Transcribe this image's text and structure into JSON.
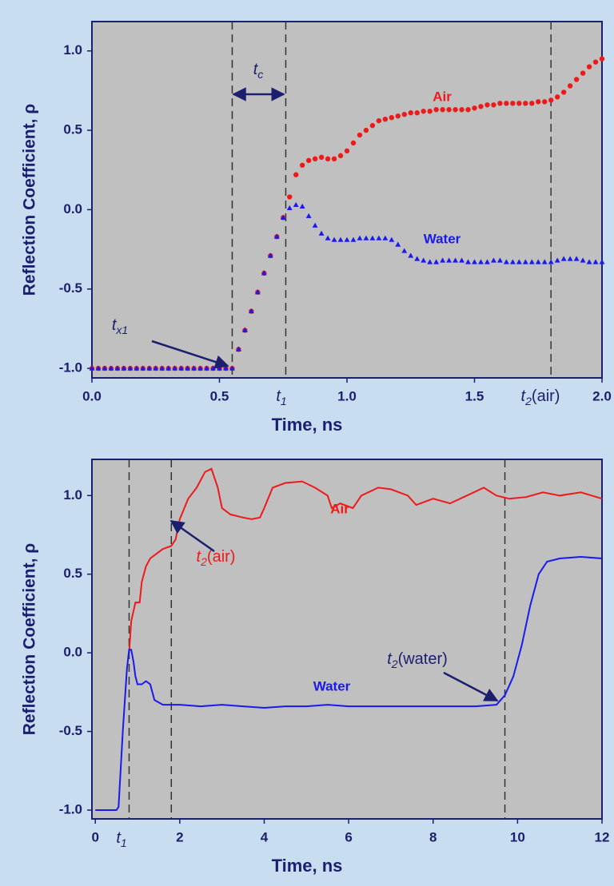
{
  "chart_data": [
    {
      "type": "scatter",
      "xlabel": "Time, ns",
      "ylabel": "Reflection Coefficient, ρ",
      "xlim": [
        0,
        2
      ],
      "ylim": [
        -1.06,
        1.185
      ],
      "xticks": [
        {
          "value": 0,
          "label": "0.0"
        },
        {
          "value": 0.5,
          "label": "0.5"
        },
        {
          "value": 1,
          "label": "1.0"
        },
        {
          "value": 1.5,
          "label": "1.5"
        },
        {
          "value": 2,
          "label": "2.0"
        }
      ],
      "yticks": [
        {
          "value": 1,
          "label": "1.0"
        },
        {
          "value": 0.5,
          "label": "0.5"
        },
        {
          "value": 0,
          "label": "0.0"
        },
        {
          "value": -0.5,
          "label": "-0.5"
        },
        {
          "value": -1,
          "label": "-1.0"
        }
      ],
      "x": [
        0,
        0.025,
        0.05,
        0.075,
        0.1,
        0.125,
        0.15,
        0.175,
        0.2,
        0.225,
        0.25,
        0.275,
        0.3,
        0.325,
        0.35,
        0.375,
        0.4,
        0.425,
        0.45,
        0.475,
        0.5,
        0.525,
        0.55,
        0.575,
        0.6,
        0.625,
        0.65,
        0.675,
        0.7,
        0.725,
        0.75,
        0.775,
        0.8,
        0.825,
        0.85,
        0.875,
        0.9,
        0.925,
        0.95,
        0.975,
        1,
        1.025,
        1.05,
        1.075,
        1.1,
        1.125,
        1.15,
        1.175,
        1.2,
        1.225,
        1.25,
        1.275,
        1.3,
        1.325,
        1.35,
        1.375,
        1.4,
        1.425,
        1.45,
        1.475,
        1.5,
        1.525,
        1.55,
        1.575,
        1.6,
        1.625,
        1.65,
        1.675,
        1.7,
        1.725,
        1.75,
        1.775,
        1.8,
        1.825,
        1.85,
        1.875,
        1.9,
        1.925,
        1.95,
        1.975,
        2
      ],
      "series": [
        {
          "name": "Air",
          "color": "#ee1a1a",
          "marker": "circle",
          "values": [
            -1,
            -1,
            -1,
            -1,
            -1,
            -1,
            -1,
            -1,
            -1,
            -1,
            -1,
            -1,
            -1,
            -1,
            -1,
            -1,
            -1,
            -1,
            -1,
            -1,
            -1,
            -1,
            -1,
            -0.88,
            -0.76,
            -0.64,
            -0.52,
            -0.4,
            -0.29,
            -0.17,
            -0.05,
            0.08,
            0.22,
            0.28,
            0.31,
            0.32,
            0.33,
            0.32,
            0.32,
            0.34,
            0.37,
            0.42,
            0.47,
            0.5,
            0.53,
            0.56,
            0.57,
            0.58,
            0.59,
            0.6,
            0.61,
            0.61,
            0.62,
            0.62,
            0.63,
            0.63,
            0.63,
            0.63,
            0.63,
            0.63,
            0.64,
            0.65,
            0.66,
            0.66,
            0.67,
            0.67,
            0.67,
            0.67,
            0.67,
            0.67,
            0.68,
            0.68,
            0.69,
            0.71,
            0.74,
            0.78,
            0.82,
            0.86,
            0.9,
            0.93,
            0.95
          ]
        },
        {
          "name": "Water",
          "color": "#1a1aee",
          "marker": "triangle",
          "values": [
            -1,
            -1,
            -1,
            -1,
            -1,
            -1,
            -1,
            -1,
            -1,
            -1,
            -1,
            -1,
            -1,
            -1,
            -1,
            -1,
            -1,
            -1,
            -1,
            -1,
            -1,
            -1,
            -1,
            -0.88,
            -0.76,
            -0.64,
            -0.52,
            -0.4,
            -0.29,
            -0.17,
            -0.05,
            0.01,
            0.03,
            0.02,
            -0.04,
            -0.1,
            -0.15,
            -0.18,
            -0.19,
            -0.19,
            -0.19,
            -0.19,
            -0.18,
            -0.18,
            -0.18,
            -0.18,
            -0.18,
            -0.19,
            -0.22,
            -0.26,
            -0.29,
            -0.31,
            -0.32,
            -0.33,
            -0.33,
            -0.32,
            -0.32,
            -0.32,
            -0.32,
            -0.33,
            -0.33,
            -0.33,
            -0.33,
            -0.32,
            -0.32,
            -0.33,
            -0.33,
            -0.33,
            -0.33,
            -0.33,
            -0.33,
            -0.33,
            -0.33,
            -0.32,
            -0.31,
            -0.31,
            -0.31,
            -0.32,
            -0.33,
            -0.33,
            -0.33
          ]
        }
      ],
      "vlines": [
        0.55,
        0.76,
        1.8
      ],
      "annotations": [
        {
          "main": "t",
          "sub": "c",
          "color": "#1b1f6e"
        },
        {
          "main": "t",
          "sub": "x1",
          "color": "#1b1f6e"
        },
        {
          "main": "t",
          "sub": "1",
          "color": "#1b1f6e"
        },
        {
          "main": "t",
          "sub": "2",
          "suffix": "(air)",
          "color": "#1b1f6e"
        }
      ]
    },
    {
      "type": "line",
      "xlabel": "Time, ns",
      "ylabel": "Reflection Coefficient, ρ",
      "xlim": [
        -0.08,
        12
      ],
      "ylim": [
        -1.056,
        1.23
      ],
      "xticks": [
        0,
        2,
        4,
        6,
        8,
        10,
        12
      ],
      "yticks": [
        {
          "value": 1,
          "label": "1.0"
        },
        {
          "value": 0.5,
          "label": "0.5"
        },
        {
          "value": 0,
          "label": "0.0"
        },
        {
          "value": -0.5,
          "label": "-0.5"
        },
        {
          "value": -1,
          "label": "-1.0"
        }
      ],
      "series": [
        {
          "name": "Air",
          "color": "#ee1a1a",
          "x": [
            0.8,
            0.85,
            0.95,
            1.05,
            1.1,
            1.2,
            1.3,
            1.45,
            1.6,
            1.8,
            1.9,
            2.0,
            2.2,
            2.4,
            2.6,
            2.75,
            2.9,
            3.0,
            3.2,
            3.5,
            3.7,
            3.9,
            4.0,
            4.2,
            4.5,
            4.9,
            5.2,
            5.5,
            5.6,
            5.8,
            6.1,
            6.3,
            6.7,
            7.0,
            7.4,
            7.6,
            8.0,
            8.4,
            8.8,
            9.2,
            9.5,
            9.8,
            10.2,
            10.6,
            11.0,
            11.5,
            12.0
          ],
          "values": [
            0,
            0.2,
            0.32,
            0.32,
            0.45,
            0.55,
            0.6,
            0.63,
            0.66,
            0.68,
            0.72,
            0.85,
            0.98,
            1.05,
            1.15,
            1.17,
            1.05,
            0.92,
            0.88,
            0.86,
            0.85,
            0.86,
            0.92,
            1.05,
            1.08,
            1.09,
            1.05,
            1.0,
            0.92,
            0.95,
            0.92,
            1.0,
            1.05,
            1.04,
            1.0,
            0.94,
            0.98,
            0.95,
            1.0,
            1.05,
            1.0,
            0.98,
            0.99,
            1.02,
            1.0,
            1.02,
            0.98
          ]
        },
        {
          "name": "Water",
          "color": "#1a1aee",
          "x": [
            0,
            0.5,
            0.55,
            0.65,
            0.75,
            0.8,
            0.85,
            0.9,
            0.95,
            1.0,
            1.1,
            1.2,
            1.3,
            1.4,
            1.6,
            2.0,
            2.5,
            3.0,
            3.5,
            4.0,
            4.5,
            5.0,
            5.5,
            6.0,
            7.0,
            8.0,
            9.0,
            9.5,
            9.7,
            9.9,
            10.1,
            10.3,
            10.5,
            10.7,
            11.0,
            11.5,
            12.0
          ],
          "values": [
            -1,
            -1,
            -0.98,
            -0.5,
            -0.1,
            0.02,
            0.02,
            -0.05,
            -0.15,
            -0.2,
            -0.2,
            -0.18,
            -0.2,
            -0.3,
            -0.33,
            -0.33,
            -0.34,
            -0.33,
            -0.34,
            -0.35,
            -0.34,
            -0.34,
            -0.33,
            -0.34,
            -0.34,
            -0.34,
            -0.34,
            -0.33,
            -0.27,
            -0.15,
            0.05,
            0.3,
            0.5,
            0.58,
            0.6,
            0.61,
            0.6
          ]
        }
      ],
      "vlines": [
        0.8,
        1.8,
        9.7
      ],
      "annotations": [
        {
          "main": "t",
          "sub": "1",
          "color": "#1b1f6e"
        },
        {
          "main": "t",
          "sub": "2",
          "suffix": "(air)",
          "color": "#ee1a1a"
        },
        {
          "main": "t",
          "sub": "2",
          "suffix": "(water)",
          "color": "#1b1f6e"
        }
      ]
    }
  ]
}
